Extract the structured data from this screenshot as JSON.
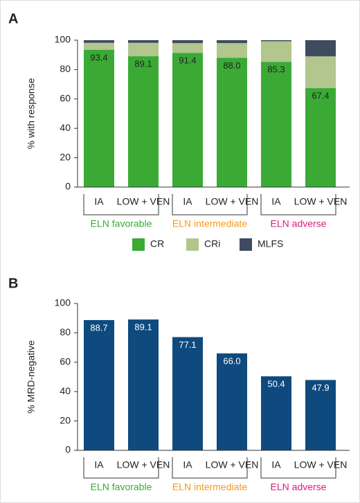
{
  "chart_data": [
    {
      "type": "stacked_bar",
      "panel": "A",
      "ylabel": "% with response",
      "categories": [
        "IA",
        "LOW + VEN",
        "IA",
        "LOW + VEN",
        "IA",
        "LOW + VEN"
      ],
      "groups": [
        {
          "label": "ELN favorable",
          "color": "#3aaa35"
        },
        {
          "label": "ELN intermediate",
          "color": "#f39a1e"
        },
        {
          "label": "ELN adverse",
          "color": "#e0197d"
        }
      ],
      "series": [
        {
          "name": "CR",
          "color": "#3aaa35",
          "values": [
            93.4,
            89.1,
            91.4,
            88.0,
            85.3,
            67.4
          ],
          "value_labels": [
            "93.4",
            "89.1",
            "91.4",
            "88.0",
            "85.3",
            "67.4"
          ]
        },
        {
          "name": "CRi",
          "color": "#b2c68e",
          "values": [
            4.8,
            9.1,
            6.6,
            10.0,
            14.0,
            21.6
          ]
        },
        {
          "name": "MLFS",
          "color": "#3f4b5f",
          "values": [
            1.8,
            1.8,
            2.0,
            2.0,
            0.7,
            11.0
          ]
        }
      ],
      "ylim": [
        0,
        100
      ],
      "yticks": [
        0,
        20,
        40,
        60,
        80,
        100
      ],
      "grid": false,
      "legend": "bottom"
    },
    {
      "type": "bar",
      "panel": "B",
      "ylabel": "% MRD-negative",
      "categories": [
        "IA",
        "LOW + VEN",
        "IA",
        "LOW + VEN",
        "IA",
        "LOW + VEN"
      ],
      "groups": [
        {
          "label": "ELN favorable",
          "color": "#3aaa35"
        },
        {
          "label": "ELN intermediate",
          "color": "#f39a1e"
        },
        {
          "label": "ELN adverse",
          "color": "#e0197d"
        }
      ],
      "values": [
        88.7,
        89.1,
        77.1,
        66.0,
        50.4,
        47.9
      ],
      "value_labels": [
        "88.7",
        "89.1",
        "77.1",
        "66.0",
        "50.4",
        "47.9"
      ],
      "color": "#0e4a7e",
      "ylim": [
        0,
        100
      ],
      "yticks": [
        0,
        20,
        40,
        60,
        80,
        100
      ],
      "grid": false
    }
  ]
}
